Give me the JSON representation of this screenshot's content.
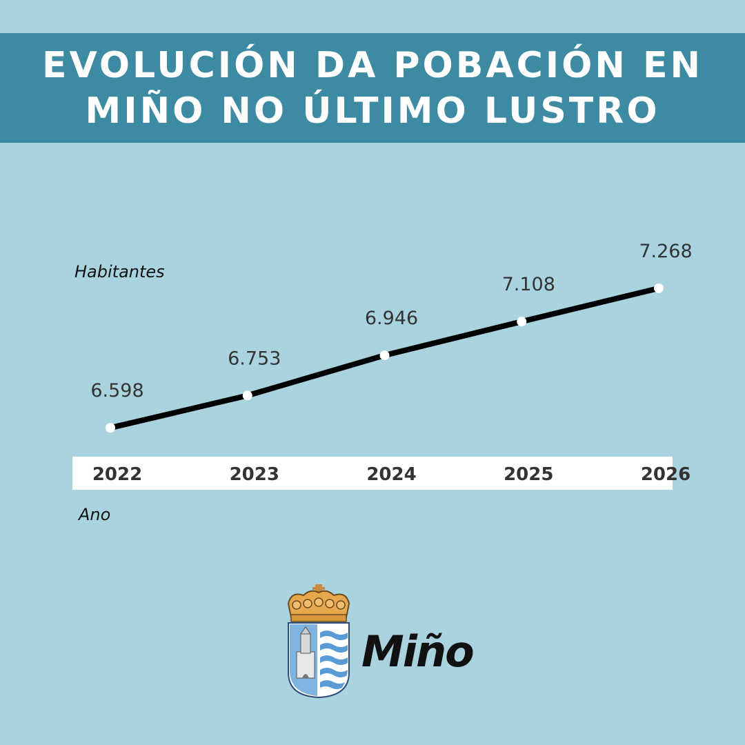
{
  "header": {
    "title_line1": "EVOLUCIÓN DA POBACIÓN EN",
    "title_line2": "MIÑO NO ÚLTIMO LUSTRO"
  },
  "chart_data": {
    "type": "line",
    "title": "EVOLUCIÓN DA POBACIÓN EN MIÑO NO ÚLTIMO LUSTRO",
    "xlabel": "Ano",
    "ylabel": "Habitantes",
    "categories": [
      "2022",
      "2023",
      "2024",
      "2025",
      "2026"
    ],
    "values": [
      6598,
      6753,
      6946,
      7108,
      7268
    ],
    "value_labels": [
      "6.598",
      "6.753",
      "6.946",
      "7.108",
      "7.268"
    ],
    "grid": false,
    "line_color": "#000000",
    "marker_color": "#ffffff",
    "axis_band_color": "#ffffff"
  },
  "logo": {
    "brand_text": "Miño",
    "icon": "coat-of-arms-icon"
  },
  "colors": {
    "background": "#a9d3df",
    "banner": "#3c8ba2",
    "title_text": "#ffffff"
  }
}
